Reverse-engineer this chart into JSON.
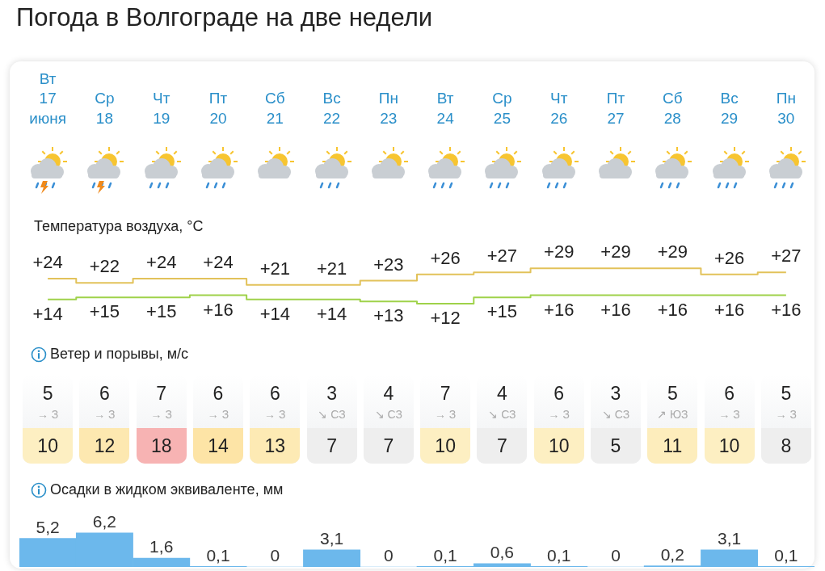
{
  "chart_data": [
    {
      "type": "step",
      "title": "Погода в Волгограде на две недели",
      "subtitle": "Температура воздуха, °C",
      "categories": [
        "Вт 17 июня",
        "Ср 18",
        "Чт 19",
        "Пт 20",
        "Сб 21",
        "Вс 22",
        "Пн 23",
        "Вт 24",
        "Ср 25",
        "Чт 26",
        "Пт 27",
        "Сб 28",
        "Вс 29",
        "Пн 30"
      ],
      "series": [
        {
          "color": "#e2c25a",
          "values": [
            24,
            22,
            24,
            24,
            21,
            21,
            23,
            26,
            27,
            29,
            29,
            29,
            26,
            27
          ],
          "value_labels": [
            "+24",
            "+22",
            "+24",
            "+24",
            "+21",
            "+21",
            "+23",
            "+26",
            "+27",
            "+29",
            "+29",
            "+29",
            "+26",
            "+27"
          ]
        },
        {
          "color": "#9fd24a",
          "values": [
            14,
            15,
            15,
            16,
            14,
            14,
            13,
            12,
            15,
            16,
            16,
            16,
            16,
            16
          ],
          "value_labels": [
            "+14",
            "+15",
            "+15",
            "+16",
            "+14",
            "+14",
            "+13",
            "+12",
            "+15",
            "+16",
            "+16",
            "+16",
            "+16",
            "+16"
          ]
        }
      ],
      "grid": false,
      "legend": false
    },
    {
      "type": "other",
      "title": "Ветер и порывы, м/с",
      "categories": [
        null,
        null,
        null,
        null,
        null,
        null,
        null,
        null,
        null,
        null,
        null,
        null,
        null,
        null
      ],
      "colors": [
        "#fdefc2",
        "#fde8b0",
        "#f7b3b3",
        "#fde4a6",
        "#fdeab4",
        "#eeeeee",
        "#eeeeee",
        "#fdefc2",
        "#eeeeee",
        "#fdefc2",
        "#eeeeee",
        "#fdedbc",
        "#fdefc2",
        "#eeeeee"
      ],
      "annotations": [
        "5",
        "→ З",
        "10",
        "6",
        "→ З",
        "12",
        "7",
        "→ З",
        "18",
        "6",
        "→ З",
        "14",
        "6",
        "→ З",
        "13",
        "3",
        "↘ СЗ",
        "7",
        "4",
        "↘ СЗ",
        "7",
        "7",
        "→ З",
        "10",
        "4",
        "↘ СЗ",
        "7",
        "6",
        "→ З",
        "10",
        "3",
        "↘ СЗ",
        "5",
        "5",
        "↗ ЮЗ",
        "11",
        "6",
        "→ З",
        "10",
        "5",
        "→ З",
        "8"
      ]
    },
    {
      "type": "bar",
      "title": "Осадки в жидком эквиваленте, мм",
      "categories": [
        null,
        null,
        null,
        null,
        null,
        null,
        null,
        null,
        null,
        null,
        null,
        null,
        null,
        null
      ],
      "values": [
        5.2,
        6.2,
        1.6,
        0.1,
        0,
        3.1,
        0,
        0.1,
        0.6,
        0.1,
        0,
        0.2,
        3.1,
        0.1
      ],
      "value_labels": [
        "5,2",
        "6,2",
        "1,6",
        "0,1",
        "0",
        "3,1",
        "0",
        "0,1",
        "0,6",
        "0,1",
        "0",
        "0,2",
        "3,1",
        "0,1"
      ],
      "color": "#6cb8ec",
      "grid": false,
      "legend": false
    }
  ]
}
